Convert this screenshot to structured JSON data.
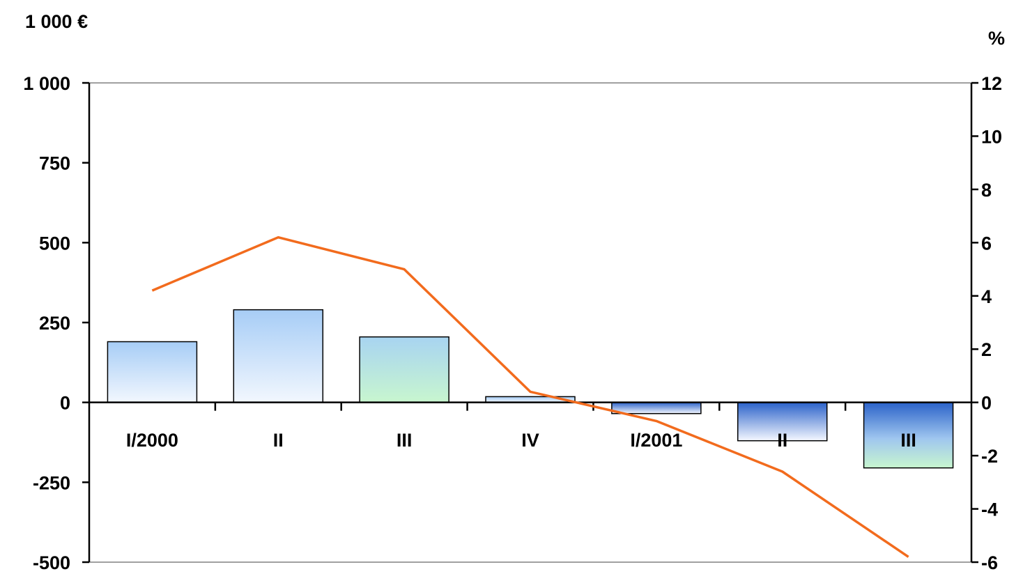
{
  "chart_data": {
    "type": "bar",
    "categories": [
      "I/2000",
      "II",
      "III",
      "IV",
      "I/2001",
      "II",
      "III"
    ],
    "series": [
      {
        "type": "bar",
        "axis": "left",
        "values": [
          190,
          290,
          205,
          18,
          -35,
          -120,
          -205
        ]
      },
      {
        "type": "line",
        "axis": "right",
        "color": "#f26b1d",
        "values": [
          4.2,
          6.2,
          5.0,
          0.4,
          -0.7,
          -2.6,
          -5.8
        ]
      }
    ],
    "y_left": {
      "unit_label": "1 000 €",
      "ylim": [
        -500,
        1000
      ],
      "ticks": [
        1000,
        750,
        500,
        250,
        0,
        -250,
        -500
      ],
      "tick_labels": [
        "1 000",
        "750",
        "500",
        "250",
        "0",
        "-250",
        "-500"
      ]
    },
    "y_right": {
      "unit_label": "%",
      "ylim": [
        -6,
        12
      ],
      "ticks": [
        12,
        10,
        8,
        6,
        4,
        2,
        0,
        -2,
        -4,
        -6
      ],
      "tick_labels": [
        "12",
        "10",
        "8",
        "6",
        "4",
        "2",
        "0",
        "-2",
        "-4",
        "-6"
      ]
    },
    "grid": false,
    "legend": "none"
  }
}
